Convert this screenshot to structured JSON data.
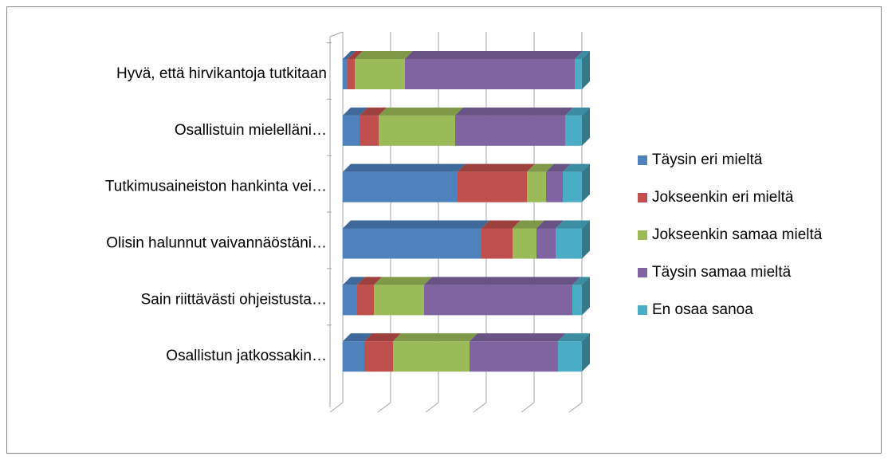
{
  "chart_data": {
    "type": "stacked_bar_3d",
    "categories": [
      "Hyvä, että hirvikantoja tutkitaan",
      "Osallistuin mielelläni…",
      "Tutkimusaineiston hankinta vei…",
      "Olisin halunnut vaivannäöstäni…",
      "Sain riittävästi ohjeistusta…",
      "Osallistun jatkossakin…"
    ],
    "series": [
      {
        "name": "Täysin eri mieltä",
        "color": "#4f81bd",
        "values": [
          2,
          7,
          48,
          58,
          6,
          9
        ]
      },
      {
        "name": "Jokseenkin eri mieltä",
        "color": "#c0504d",
        "values": [
          3,
          8,
          29,
          13,
          7,
          12
        ]
      },
      {
        "name": "Jokseenkin samaa mieltä",
        "color": "#9bbb59",
        "values": [
          21,
          32,
          8,
          10,
          21,
          32
        ]
      },
      {
        "name": "Täysin samaa mieltä",
        "color": "#8064a2",
        "values": [
          71,
          46,
          7,
          8,
          62,
          37
        ]
      },
      {
        "name": "En osaa sanoa",
        "color": "#4bacc6",
        "values": [
          3,
          7,
          8,
          11,
          4,
          10
        ]
      }
    ],
    "xlim": [
      0,
      100
    ],
    "xticks": [
      0,
      20,
      40,
      60,
      80,
      100
    ],
    "grid": true,
    "legend": "right"
  }
}
